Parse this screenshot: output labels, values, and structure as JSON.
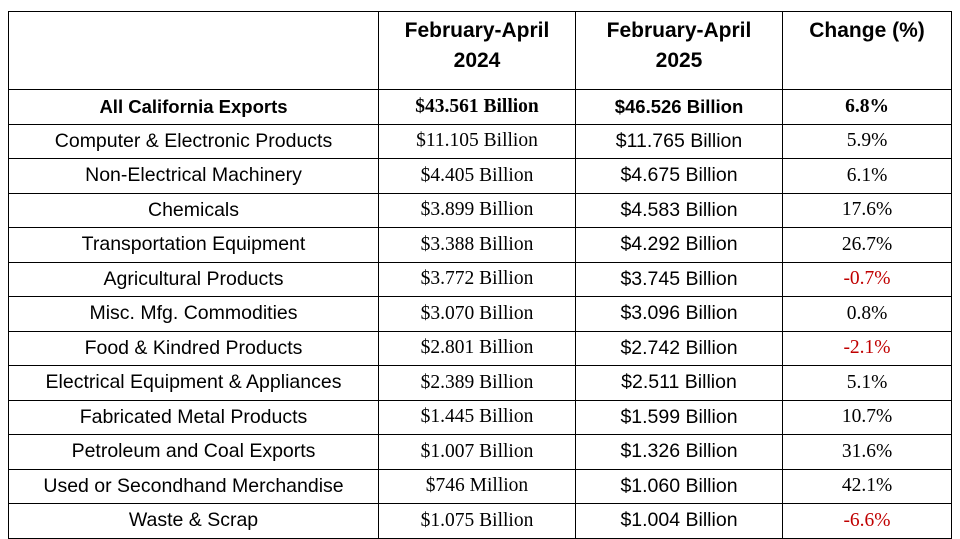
{
  "table": {
    "headers": {
      "category": "",
      "period_2024_line1": "February-April",
      "period_2024_line2": "2024",
      "period_2025_line1": "February-April",
      "period_2025_line2": "2025",
      "change": "Change (%)"
    },
    "rows": [
      {
        "category": "All California Exports",
        "y2024": "$43.561 Billion",
        "y2025": "$46.526 Billion",
        "change": "6.8%",
        "bold": true,
        "negative": false
      },
      {
        "category": "Computer & Electronic Products",
        "y2024": "$11.105 Billion",
        "y2025": "$11.765 Billion",
        "change": "5.9%",
        "bold": false,
        "negative": false
      },
      {
        "category": "Non-Electrical Machinery",
        "y2024": "$4.405 Billion",
        "y2025": "$4.675 Billion",
        "change": "6.1%",
        "bold": false,
        "negative": false
      },
      {
        "category": "Chemicals",
        "y2024": "$3.899 Billion",
        "y2025": "$4.583 Billion",
        "change": "17.6%",
        "bold": false,
        "negative": false
      },
      {
        "category": "Transportation Equipment",
        "y2024": "$3.388 Billion",
        "y2025": "$4.292 Billion",
        "change": "26.7%",
        "bold": false,
        "negative": false
      },
      {
        "category": "Agricultural Products",
        "y2024": "$3.772 Billion",
        "y2025": "$3.745 Billion",
        "change": "-0.7%",
        "bold": false,
        "negative": true
      },
      {
        "category": "Misc. Mfg. Commodities",
        "y2024": "$3.070 Billion",
        "y2025": "$3.096 Billion",
        "change": "0.8%",
        "bold": false,
        "negative": false
      },
      {
        "category": "Food & Kindred Products",
        "y2024": "$2.801 Billion",
        "y2025": "$2.742 Billion",
        "change": "-2.1%",
        "bold": false,
        "negative": true
      },
      {
        "category": "Electrical Equipment & Appliances",
        "y2024": "$2.389 Billion",
        "y2025": "$2.511 Billion",
        "change": "5.1%",
        "bold": false,
        "negative": false
      },
      {
        "category": "Fabricated Metal Products",
        "y2024": "$1.445 Billion",
        "y2025": "$1.599 Billion",
        "change": "10.7%",
        "bold": false,
        "negative": false
      },
      {
        "category": "Petroleum and Coal Exports",
        "y2024": "$1.007 Billion",
        "y2025": "$1.326 Billion",
        "change": "31.6%",
        "bold": false,
        "negative": false
      },
      {
        "category": "Used or Secondhand Merchandise",
        "y2024": "$746 Million",
        "y2025": "$1.060 Billion",
        "change": "42.1%",
        "bold": false,
        "negative": false
      },
      {
        "category": "Waste & Scrap",
        "y2024": "$1.075 Billion",
        "y2025": "$1.004 Billion",
        "change": "-6.6%",
        "bold": false,
        "negative": true
      }
    ]
  },
  "colors": {
    "negative": "#c00000",
    "text": "#000000",
    "border": "#000000",
    "background": "#ffffff"
  }
}
